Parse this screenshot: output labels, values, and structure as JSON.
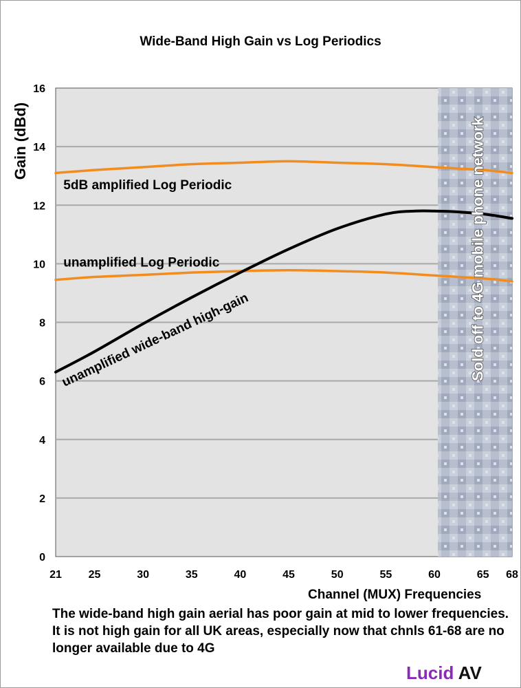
{
  "chart_data": {
    "type": "line",
    "title": "Wide-Band High Gain vs Log Periodics",
    "xlabel": "Channel (MUX) Frequencies",
    "ylabel": "Gain (dBd)",
    "xlim": [
      21,
      68
    ],
    "ylim": [
      0,
      16
    ],
    "x_ticks": [
      21,
      25,
      30,
      35,
      40,
      45,
      50,
      55,
      60,
      65,
      68
    ],
    "y_ticks": [
      0,
      2,
      4,
      6,
      8,
      10,
      12,
      14,
      16
    ],
    "grid": "horizontal",
    "series": [
      {
        "name": "5dB amplified Log Periodic",
        "color": "#f28c1e",
        "x": [
          21,
          25,
          30,
          35,
          40,
          45,
          50,
          55,
          60,
          65,
          68
        ],
        "y": [
          13.1,
          13.2,
          13.3,
          13.4,
          13.45,
          13.5,
          13.45,
          13.4,
          13.3,
          13.2,
          13.1
        ]
      },
      {
        "name": "unamplified Log Periodic",
        "color": "#f28c1e",
        "x": [
          21,
          25,
          30,
          35,
          40,
          45,
          50,
          55,
          60,
          65,
          68
        ],
        "y": [
          9.45,
          9.55,
          9.62,
          9.7,
          9.75,
          9.78,
          9.75,
          9.7,
          9.6,
          9.5,
          9.4
        ]
      },
      {
        "name": "unamplified wide-band high-gain",
        "color": "#000000",
        "x": [
          21,
          25,
          30,
          35,
          40,
          45,
          50,
          55,
          58,
          60,
          62,
          65,
          68
        ],
        "y": [
          6.3,
          7.0,
          7.95,
          8.85,
          9.7,
          10.5,
          11.2,
          11.7,
          11.8,
          11.8,
          11.78,
          11.7,
          11.55
        ]
      }
    ],
    "annotations": [
      {
        "text": "5dB amplified Log Periodic",
        "x": 21.8,
        "y": 12.55
      },
      {
        "text": "unamplified Log Periodic",
        "x": 21.8,
        "y": 9.9
      },
      {
        "text": "unamplified wide-band high-gain",
        "x": 21.9,
        "y": 5.8,
        "angle": -25
      },
      {
        "text": "Sold off to 4G mobile phone network",
        "x": 65,
        "y": 10.5,
        "angle": -90
      }
    ],
    "shaded_region": {
      "x_from": 60,
      "x_to": 68,
      "label": "Sold off to 4G mobile phone network"
    }
  },
  "caption": "The wide-band high gain aerial has poor gain at mid to lower frequencies. It is not high gain for all UK areas, especially now that chnls 61-68 are no longer available due to 4G",
  "brand": {
    "part1": "Lucid",
    "part2": " AV",
    "part1_color": "#8a2ab8"
  }
}
